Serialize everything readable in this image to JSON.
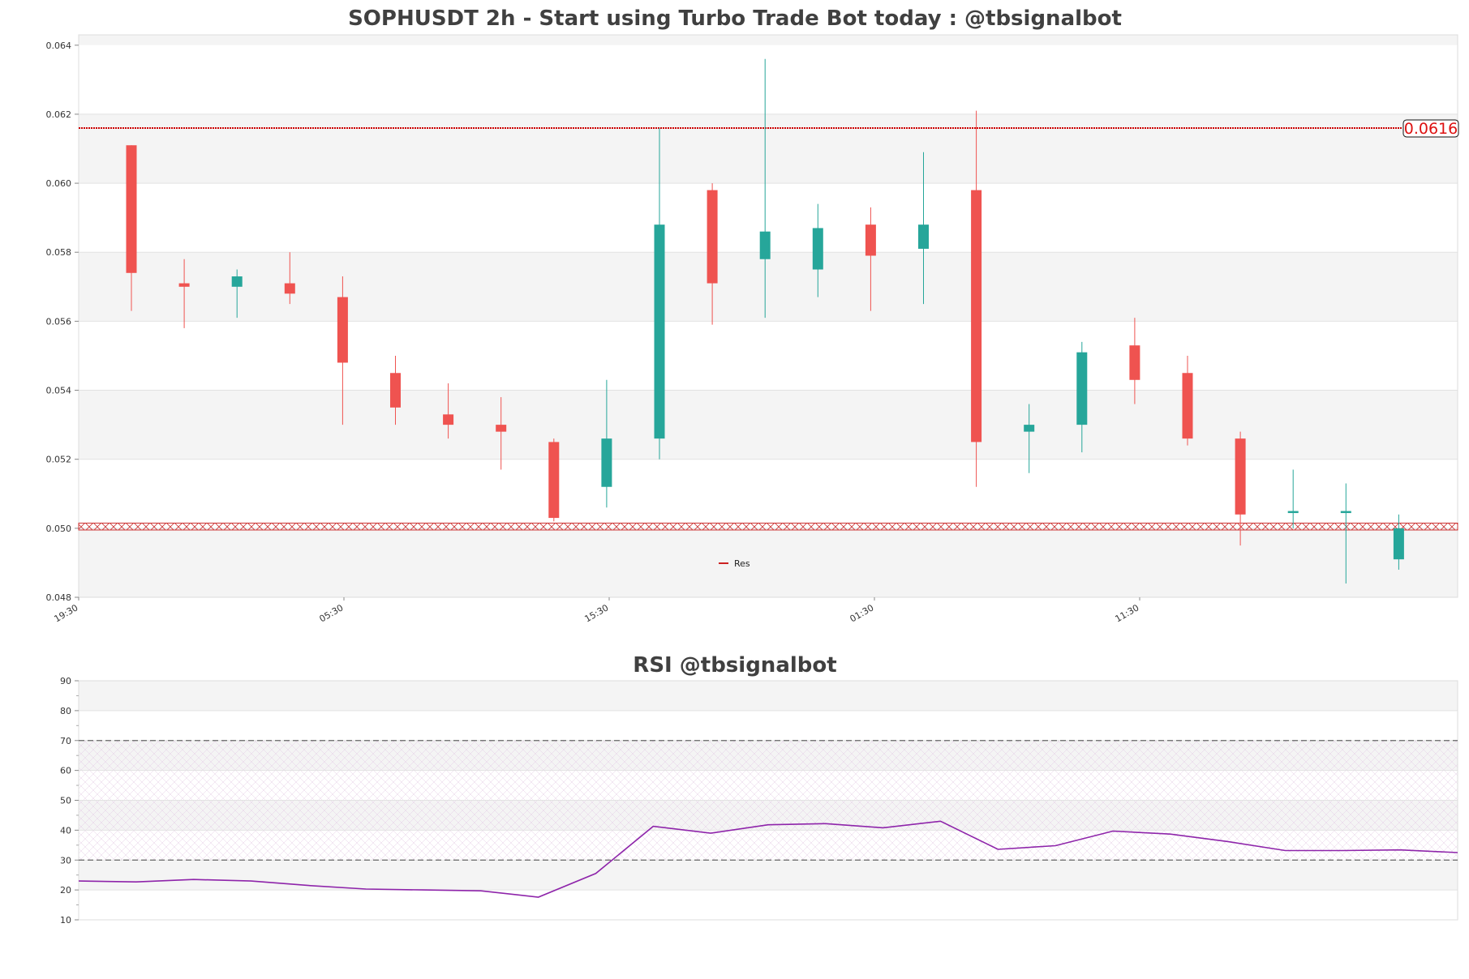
{
  "chart_data": [
    {
      "type": "candlestick",
      "title": "SOPHUSDT 2h - Start using Turbo Trade Bot today : @tbsignalbot",
      "ylim": [
        0.048,
        0.0643
      ],
      "y_ticks": [
        "0.048",
        "0.050",
        "0.052",
        "0.054",
        "0.056",
        "0.058",
        "0.060",
        "0.062",
        "0.064"
      ],
      "x_tick_labels": [
        "19:30",
        "05:30",
        "15:30",
        "01:30",
        "11:30"
      ],
      "candles": [
        {
          "open": 0.0611,
          "high": 0.0611,
          "low": 0.0563,
          "close": 0.0574
        },
        {
          "open": 0.0571,
          "high": 0.0578,
          "low": 0.0558,
          "close": 0.057
        },
        {
          "open": 0.057,
          "high": 0.0575,
          "low": 0.0561,
          "close": 0.0573
        },
        {
          "open": 0.0571,
          "high": 0.058,
          "low": 0.0565,
          "close": 0.0568
        },
        {
          "open": 0.0567,
          "high": 0.0573,
          "low": 0.053,
          "close": 0.0548
        },
        {
          "open": 0.0545,
          "high": 0.055,
          "low": 0.053,
          "close": 0.0535
        },
        {
          "open": 0.0533,
          "high": 0.0542,
          "low": 0.0526,
          "close": 0.053
        },
        {
          "open": 0.053,
          "high": 0.0538,
          "low": 0.0517,
          "close": 0.0528
        },
        {
          "open": 0.0525,
          "high": 0.0526,
          "low": 0.0502,
          "close": 0.0503
        },
        {
          "open": 0.0512,
          "high": 0.0543,
          "low": 0.0506,
          "close": 0.0526
        },
        {
          "open": 0.0526,
          "high": 0.0616,
          "low": 0.052,
          "close": 0.0588
        },
        {
          "open": 0.0598,
          "high": 0.06,
          "low": 0.0559,
          "close": 0.0571
        },
        {
          "open": 0.0578,
          "high": 0.0636,
          "low": 0.0561,
          "close": 0.0586
        },
        {
          "open": 0.0575,
          "high": 0.0594,
          "low": 0.0567,
          "close": 0.0587
        },
        {
          "open": 0.0588,
          "high": 0.0593,
          "low": 0.0563,
          "close": 0.0579
        },
        {
          "open": 0.0581,
          "high": 0.0609,
          "low": 0.0565,
          "close": 0.0588
        },
        {
          "open": 0.0598,
          "high": 0.0621,
          "low": 0.0512,
          "close": 0.0525
        },
        {
          "open": 0.0528,
          "high": 0.0536,
          "low": 0.0516,
          "close": 0.053
        },
        {
          "open": 0.053,
          "high": 0.0554,
          "low": 0.0522,
          "close": 0.0551
        },
        {
          "open": 0.0553,
          "high": 0.0561,
          "low": 0.0536,
          "close": 0.0543
        },
        {
          "open": 0.0545,
          "high": 0.055,
          "low": 0.0524,
          "close": 0.0526
        },
        {
          "open": 0.0526,
          "high": 0.0528,
          "low": 0.0495,
          "close": 0.0504
        },
        {
          "open": 0.0505,
          "high": 0.0517,
          "low": 0.05,
          "close": 0.0505
        },
        {
          "open": 0.0505,
          "high": 0.0513,
          "low": 0.0484,
          "close": 0.0505
        },
        {
          "open": 0.0491,
          "high": 0.0504,
          "low": 0.0488,
          "close": 0.05
        }
      ],
      "resistance": {
        "value": 0.0616,
        "label": "0.0616"
      },
      "support_band": [
        0.04995,
        0.05015
      ],
      "legend": [
        {
          "name": "Res",
          "color": "#cc2222"
        }
      ],
      "colors": {
        "up": "#26a69a",
        "down": "#ef5350",
        "res": "#cc0000"
      }
    },
    {
      "type": "line",
      "title": "RSI @tbsignalbot",
      "ylim": [
        10,
        90
      ],
      "y_ticks": [
        "10",
        "20",
        "30",
        "40",
        "50",
        "60",
        "70",
        "80",
        "90"
      ],
      "overbought": 70,
      "oversold": 30,
      "values": [
        23,
        22.7,
        23.5,
        23,
        21.5,
        20.3,
        20,
        19.7,
        17.6,
        25.5,
        41.3,
        39,
        41.8,
        42.2,
        40.8,
        43,
        33.6,
        34.8,
        39.7,
        38.7,
        36.2,
        33.2,
        33.2,
        33.4,
        32.5
      ],
      "colors": {
        "line": "#8e24aa"
      }
    }
  ]
}
